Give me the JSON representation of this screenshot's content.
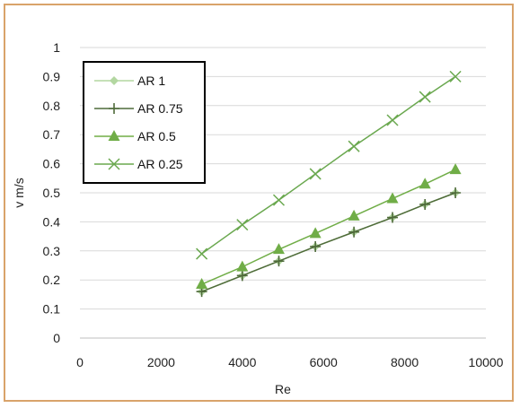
{
  "chart_data": {
    "type": "line",
    "title": "",
    "xlabel": "Re",
    "ylabel": "v m/s",
    "xlim": [
      0,
      10000
    ],
    "ylim": [
      0,
      1
    ],
    "x_ticks": [
      "0",
      "2000",
      "4000",
      "6000",
      "8000",
      "10000"
    ],
    "y_ticks": [
      "0",
      "0.1",
      "0.2",
      "0.3",
      "0.4",
      "0.5",
      "0.6",
      "0.7",
      "0.8",
      "0.9",
      "1"
    ],
    "grid": true,
    "legend_position": "top-left",
    "series": [
      {
        "name": "AR 1",
        "marker": "diamond",
        "color": "#b3d7a1",
        "x": [
          3000,
          4000,
          4900,
          5800,
          6750,
          7700,
          8500,
          9250
        ],
        "y": [
          0.16,
          0.215,
          0.265,
          0.315,
          0.365,
          0.415,
          0.46,
          0.5
        ]
      },
      {
        "name": "AR 0.75",
        "marker": "plus",
        "color": "#4f6b3a",
        "x": [
          3000,
          4000,
          4900,
          5800,
          6750,
          7700,
          8500,
          9250
        ],
        "y": [
          0.16,
          0.215,
          0.265,
          0.315,
          0.365,
          0.415,
          0.46,
          0.5
        ]
      },
      {
        "name": "AR 0.5",
        "marker": "triangle",
        "color": "#70ad47",
        "x": [
          3000,
          4000,
          4900,
          5800,
          6750,
          7700,
          8500,
          9250
        ],
        "y": [
          0.185,
          0.245,
          0.305,
          0.36,
          0.42,
          0.48,
          0.53,
          0.58
        ]
      },
      {
        "name": "AR 0.25",
        "marker": "x",
        "color": "#6aa84f",
        "x": [
          3000,
          4000,
          4900,
          5800,
          6750,
          7700,
          8500,
          9250
        ],
        "y": [
          0.29,
          0.39,
          0.475,
          0.565,
          0.66,
          0.75,
          0.83,
          0.9
        ]
      }
    ]
  },
  "colors": {
    "border": "#d9a36a",
    "grid": "#d9d9d9",
    "legend_border": "#000000"
  }
}
